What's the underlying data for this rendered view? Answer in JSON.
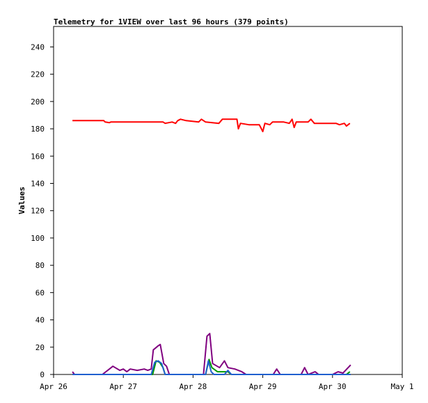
{
  "chart_data": {
    "type": "line",
    "title": "Telemetry for 1VIEW over last 96 hours (379 points)",
    "y_label": "Values",
    "xlim": [
      0,
      5
    ],
    "xticks": [
      {
        "value": 0,
        "label": "Apr 26"
      },
      {
        "value": 1,
        "label": "Apr 27"
      },
      {
        "value": 2,
        "label": "Apr 28"
      },
      {
        "value": 3,
        "label": "Apr 29"
      },
      {
        "value": 4,
        "label": "Apr 30"
      },
      {
        "value": 5,
        "label": "May 1"
      }
    ],
    "ylim": [
      0,
      255
    ],
    "yticks": [
      0,
      20,
      40,
      60,
      80,
      100,
      120,
      140,
      160,
      180,
      200,
      220,
      240
    ],
    "grid": false,
    "series": [
      {
        "color": "#ff0000",
        "x": [
          0.27,
          0.72,
          0.74,
          0.8,
          0.82,
          1.57,
          1.6,
          1.7,
          1.75,
          1.78,
          1.82,
          1.9,
          2.08,
          2.12,
          2.18,
          2.37,
          2.42,
          2.63,
          2.65,
          2.68,
          2.8,
          2.95,
          3.0,
          3.03,
          3.1,
          3.14,
          3.3,
          3.38,
          3.42,
          3.45,
          3.48,
          3.65,
          3.69,
          3.74,
          4.05,
          4.1,
          4.17,
          4.2,
          4.25
        ],
        "values": [
          186,
          186,
          185,
          184.5,
          185,
          185,
          184,
          185,
          184,
          186,
          187,
          186,
          185,
          187,
          185,
          184,
          187,
          187,
          180,
          184,
          183,
          183,
          178,
          184,
          183,
          185,
          185,
          184,
          187,
          181,
          185,
          185,
          187,
          184,
          184,
          183,
          184,
          182,
          184
        ]
      },
      {
        "color": "#800080",
        "x": [
          0.27,
          0.3,
          0.7,
          0.8,
          0.85,
          0.95,
          1.0,
          1.05,
          1.1,
          1.2,
          1.3,
          1.35,
          1.4,
          1.43,
          1.5,
          1.53,
          1.58,
          1.62,
          1.66,
          2.15,
          2.2,
          2.24,
          2.28,
          2.38,
          2.45,
          2.5,
          2.6,
          2.7,
          2.76,
          3.15,
          3.2,
          3.25,
          3.55,
          3.6,
          3.65,
          3.75,
          3.8,
          4.0,
          4.08,
          4.15,
          4.26
        ],
        "values": [
          2,
          0,
          0,
          4,
          6,
          3,
          4,
          2,
          4,
          3,
          4,
          3,
          4,
          18,
          21,
          22,
          8,
          6,
          0,
          0,
          28,
          30,
          8,
          5,
          10,
          5,
          4,
          2,
          0,
          0,
          4,
          0,
          0,
          5,
          0,
          2,
          0,
          0,
          2,
          1,
          7
        ]
      },
      {
        "color": "#009900",
        "x": [
          0.27,
          1.42,
          1.47,
          1.52,
          1.57,
          1.6,
          2.18,
          2.23,
          2.27,
          2.35,
          2.5,
          2.55,
          4.2,
          4.25
        ],
        "values": [
          0,
          0,
          10,
          9,
          5,
          0,
          0,
          11,
          5,
          2,
          2,
          0,
          0,
          2
        ]
      },
      {
        "color": "#1f5fcf",
        "x": [
          0.27,
          1.4,
          1.45,
          1.5,
          1.55,
          1.58,
          1.6,
          2.18,
          2.22,
          2.26,
          2.3,
          2.45,
          2.5,
          2.55,
          4.26
        ],
        "values": [
          0,
          0,
          9,
          10,
          8,
          3,
          0,
          0,
          10,
          2,
          0,
          0,
          3,
          0,
          0
        ]
      }
    ]
  }
}
